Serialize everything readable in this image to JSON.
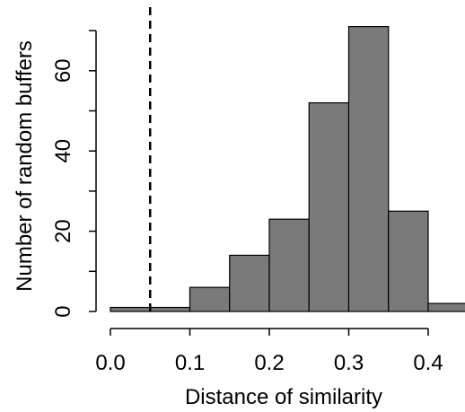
{
  "chart_data": {
    "type": "bar",
    "subtype": "histogram",
    "xlabel": "Distance of similarity",
    "ylabel": "Number of random buffers",
    "bins": [
      {
        "x0": 0.0,
        "x1": 0.05,
        "count": 1
      },
      {
        "x0": 0.05,
        "x1": 0.1,
        "count": 1
      },
      {
        "x0": 0.1,
        "x1": 0.15,
        "count": 6
      },
      {
        "x0": 0.15,
        "x1": 0.2,
        "count": 14
      },
      {
        "x0": 0.2,
        "x1": 0.25,
        "count": 23
      },
      {
        "x0": 0.25,
        "x1": 0.3,
        "count": 52
      },
      {
        "x0": 0.3,
        "x1": 0.35,
        "count": 71
      },
      {
        "x0": 0.35,
        "x1": 0.4,
        "count": 25
      },
      {
        "x0": 0.4,
        "x1": 0.45,
        "count": 2
      }
    ],
    "x_ticks": [
      0.0,
      0.1,
      0.2,
      0.3,
      0.4
    ],
    "x_tick_labels": [
      "0.0",
      "0.1",
      "0.2",
      "0.3",
      "0.4"
    ],
    "y_ticks": [
      0,
      20,
      40,
      60
    ],
    "y_minor_ticks": [
      10,
      30,
      50,
      70
    ],
    "y_tick_labels": [
      "0",
      "20",
      "40",
      "60"
    ],
    "xlim": [
      0.0,
      0.45
    ],
    "ylim": [
      0,
      70
    ],
    "reference_line": {
      "x": 0.05,
      "style": "dashed"
    },
    "grid": false,
    "colors": {
      "bar_fill": "#7a7a7a",
      "bar_edge": "#000000"
    }
  }
}
